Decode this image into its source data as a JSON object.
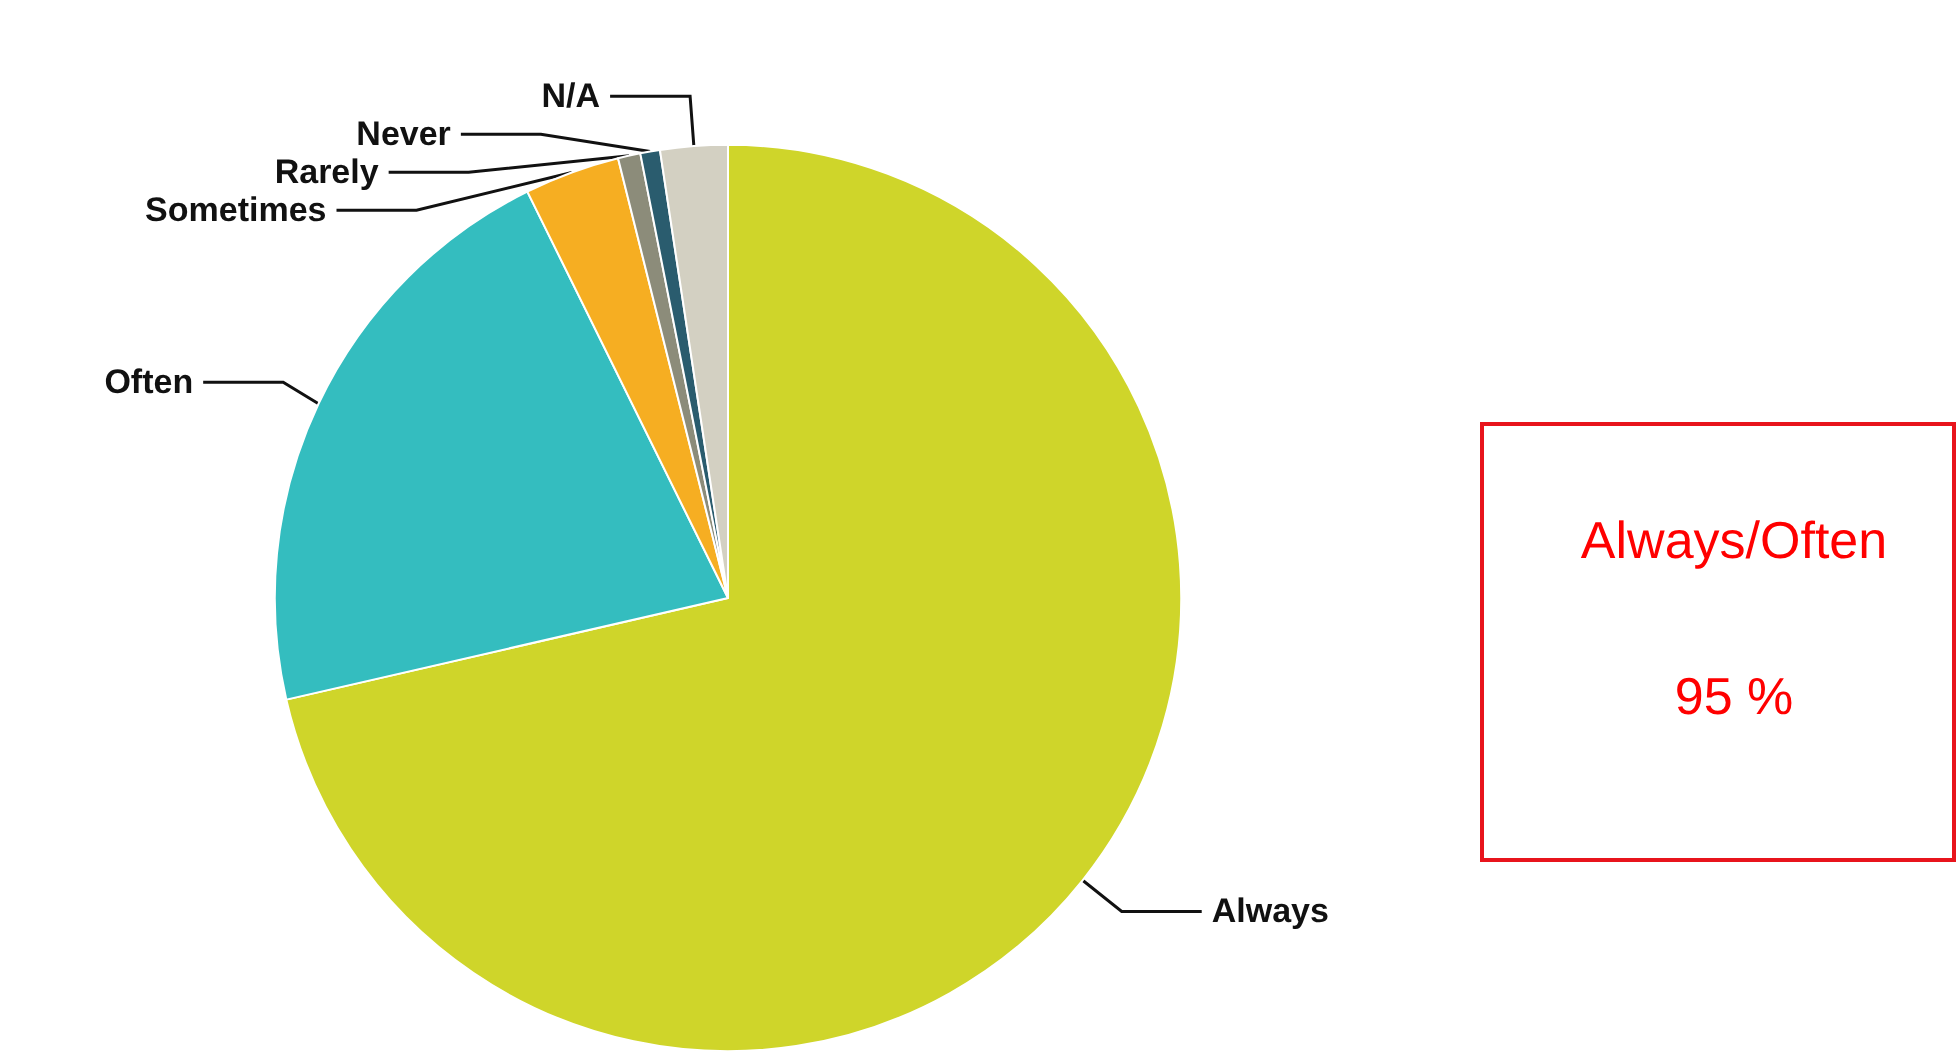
{
  "chart_data": {
    "type": "pie",
    "categories": [
      "Always",
      "Often",
      "Sometimes",
      "Rarely",
      "Never",
      "N/A"
    ],
    "values": [
      71.4,
      21.3,
      3.4,
      0.8,
      0.7,
      2.4
    ],
    "colors": [
      "#cfd52a",
      "#34bdbf",
      "#f6ae22",
      "#8c8c7a",
      "#2a5c6e",
      "#d3d0c2"
    ],
    "annotations": [
      "Always/Often",
      "95 %"
    ],
    "legend": false
  }
}
